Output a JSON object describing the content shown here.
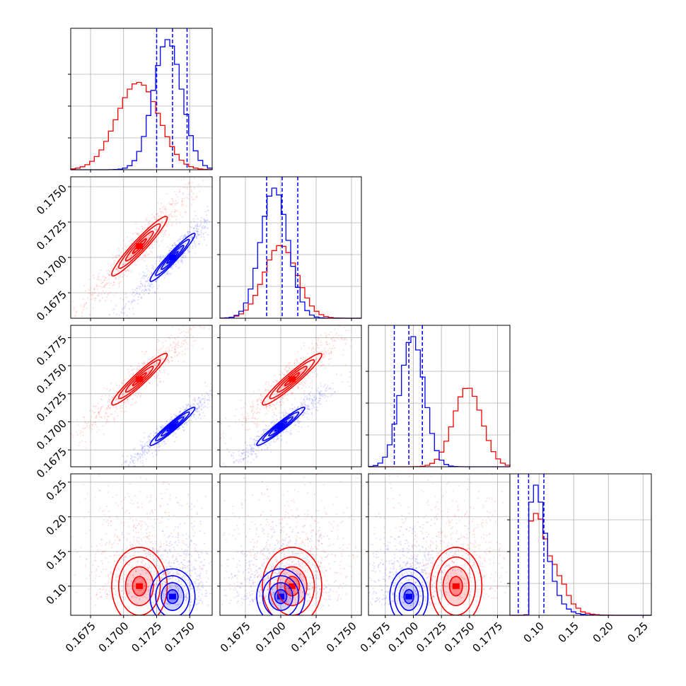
{
  "colors": {
    "red": "#ff0000",
    "blue": "#0000ff",
    "grid": "#b0b0b0",
    "axis": "#000000"
  },
  "chart_data": {
    "type": "scatter",
    "kind": "corner-plot",
    "n_params": 4,
    "grid": true,
    "params": [
      {
        "range": [
          0.166,
          0.1767
        ],
        "ticks": [
          0.1675,
          0.17,
          0.1725,
          0.175
        ],
        "tick_labels": [
          "0.1675",
          "0.1700",
          "0.1725",
          "0.1750"
        ]
      },
      {
        "range": [
          0.1657,
          0.1757
        ],
        "ticks": [
          0.1675,
          0.17,
          0.1725,
          0.175
        ],
        "tick_labels": [
          "0.1675",
          "0.1700",
          "0.1725",
          "0.1750"
        ]
      },
      {
        "range": [
          0.166,
          0.1786
        ],
        "ticks": [
          0.1675,
          0.17,
          0.1725,
          0.175,
          0.1775
        ],
        "tick_labels": [
          "0.1675",
          "0.1700",
          "0.1725",
          "0.1750",
          "0.1775"
        ]
      },
      {
        "range": [
          0.058,
          0.262
        ],
        "ticks": [
          0.1,
          0.15,
          0.2,
          0.25
        ],
        "tick_labels": [
          "0.10",
          "0.15",
          "0.20",
          "0.25"
        ]
      }
    ],
    "series": [
      {
        "color": "red",
        "mean": [
          0.1712,
          0.1708,
          0.1738,
          0.1
        ],
        "sd": [
          0.00105,
          0.00105,
          0.00115,
          0.028
        ],
        "corr": [
          [
            1,
            0.95,
            0.95,
            0
          ],
          [
            0.95,
            1,
            0.95,
            0
          ],
          [
            0.95,
            0.95,
            1,
            0
          ],
          [
            0,
            0,
            0,
            1
          ]
        ],
        "hist": [
          [
            0.0045,
            0.0084,
            0.0153,
            0.0259,
            0.0431,
            0.0673,
            0.1015,
            0.1454,
            0.1977,
            0.2558,
            0.3148,
            0.3693,
            0.413,
            0.44,
            0.4474,
            0.4334,
            0.3993,
            0.3492,
            0.2891,
            0.2268,
            0.1687,
            0.1186,
            0.0786,
            0.0489,
            0.0287,
            0.0159,
            0.0083,
            0.0041,
            0.0019,
            0.0008
          ],
          [
            0.0009,
            0.0023,
            0.0054,
            0.0119,
            0.0242,
            0.0456,
            0.0794,
            0.1275,
            0.1889,
            0.2582,
            0.3256,
            0.3785,
            0.4061,
            0.4019,
            0.3668,
            0.3086,
            0.2394,
            0.1713,
            0.113,
            0.0688,
            0.0386,
            0.02,
            0.0095,
            0.0042,
            0.0017,
            0.0007,
            0.0002,
            0.0001,
            0.0,
            0.0
          ],
          [
            0.0,
            0.0,
            0.0,
            0.0,
            0.0,
            0.0,
            0.0,
            0.0,
            0.0001,
            0.0004,
            0.0013,
            0.004,
            0.0109,
            0.0266,
            0.0581,
            0.1134,
            0.1982,
            0.3098,
            0.4334,
            0.5424,
            0.6077,
            0.6093,
            0.5469,
            0.4396,
            0.3163,
            0.2038,
            0.1176,
            0.0608,
            0.0281,
            0.0117
          ],
          [
            0.0,
            0.0,
            0.0,
            0.002,
            0.3333,
            0.36,
            0.34,
            0.27,
            0.21,
            0.18,
            0.14,
            0.11,
            0.07,
            0.04,
            0.025,
            0.012,
            0.007,
            0.004,
            0.002,
            0.001,
            0.0005,
            0.0002,
            0.0001,
            0.0,
            0.0,
            0.0,
            0.0,
            0.0,
            0.0,
            0.0
          ]
        ]
      },
      {
        "color": "blue",
        "mean": [
          0.1737,
          0.17,
          0.1696,
          0.085
        ],
        "sd": [
          0.00085,
          0.00085,
          0.00085,
          0.02
        ],
        "corr": [
          [
            1,
            0.96,
            0.96,
            0
          ],
          [
            0.96,
            1,
            0.96,
            0
          ],
          [
            0.96,
            0.96,
            1,
            0
          ],
          [
            0,
            0,
            0,
            1
          ]
        ],
        "quantiles": [
          [
            0.1725,
            0.1737,
            0.1748
          ],
          [
            0.169,
            0.1701,
            0.1712
          ],
          [
            0.1683,
            0.1696,
            0.1708
          ],
          [
            0.07,
            0.085,
            0.107
          ]
        ],
        "hist": [
          [
            0.0,
            0.0,
            0.0,
            0.0,
            0.0,
            0.0,
            0.0,
            0.0001,
            0.0003,
            0.001,
            0.003,
            0.0083,
            0.0207,
            0.0465,
            0.0939,
            0.1704,
            0.2779,
            0.4067,
            0.5341,
            0.6299,
            0.6667,
            0.6334,
            0.5399,
            0.4131,
            0.2836,
            0.1747,
            0.0966,
            0.0479,
            0.0213,
            0.0085
          ],
          [
            0.0005,
            0.0018,
            0.0058,
            0.0161,
            0.0393,
            0.0852,
            0.1636,
            0.2791,
            0.4231,
            0.57,
            0.6829,
            0.7274,
            0.6891,
            0.5805,
            0.4351,
            0.2902,
            0.1722,
            0.0909,
            0.0427,
            0.0178,
            0.0066,
            0.0022,
            0.0006,
            0.0002,
            0.0,
            0.0,
            0.0,
            0.0,
            0.0,
            0.0
          ],
          [
            0.0025,
            0.0091,
            0.0282,
            0.0749,
            0.1702,
            0.3313,
            0.5522,
            0.7884,
            0.9644,
            1.01,
            0.9063,
            0.6967,
            0.4587,
            0.2587,
            0.125,
            0.0517,
            0.0183,
            0.0056,
            0.0014,
            0.0003,
            0.0001,
            0.0,
            0.0,
            0.0,
            0.0,
            0.0,
            0.0,
            0.0,
            0.0,
            0.0
          ],
          [
            0.0,
            0.0,
            0.0,
            0.001,
            0.4,
            0.46,
            0.4,
            0.29,
            0.19,
            0.12,
            0.07,
            0.04,
            0.022,
            0.012,
            0.006,
            0.003,
            0.0015,
            0.0007,
            0.0003,
            0.0001,
            0.0,
            0.0,
            0.0,
            0.0,
            0.0,
            0.0,
            0.0,
            0.0,
            0.0,
            0.0
          ]
        ]
      }
    ]
  }
}
